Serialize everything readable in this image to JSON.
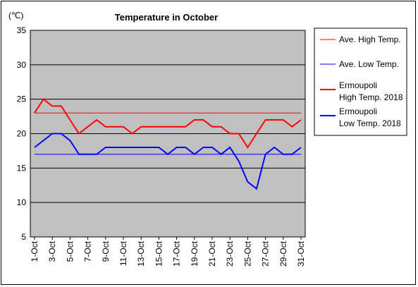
{
  "chart_data": {
    "type": "line",
    "title": "Temperature in October",
    "ylabel": "(℃)",
    "xlabel": "",
    "ylim": [
      5,
      35
    ],
    "yticks": [
      5,
      10,
      15,
      20,
      25,
      30,
      35
    ],
    "grid": true,
    "legend_position": "right",
    "categories": [
      "1-Oct",
      "2-Oct",
      "3-Oct",
      "4-Oct",
      "5-Oct",
      "6-Oct",
      "7-Oct",
      "8-Oct",
      "9-Oct",
      "10-Oct",
      "11-Oct",
      "12-Oct",
      "13-Oct",
      "14-Oct",
      "15-Oct",
      "16-Oct",
      "17-Oct",
      "18-Oct",
      "19-Oct",
      "20-Oct",
      "21-Oct",
      "22-Oct",
      "23-Oct",
      "24-Oct",
      "25-Oct",
      "26-Oct",
      "27-Oct",
      "28-Oct",
      "29-Oct",
      "30-Oct",
      "31-Oct"
    ],
    "x_tick_labels": [
      "1-Oct",
      "3-Oct",
      "5-Oct",
      "7-Oct",
      "9-Oct",
      "11-Oct",
      "13-Oct",
      "15-Oct",
      "17-Oct",
      "19-Oct",
      "21-Oct",
      "23-Oct",
      "25-Oct",
      "27-Oct",
      "29-Oct",
      "31-Oct"
    ],
    "series": [
      {
        "name": "Ave. High Temp.",
        "color": "#ff0000",
        "width": 1,
        "values": [
          23,
          23,
          23,
          23,
          23,
          23,
          23,
          23,
          23,
          23,
          23,
          23,
          23,
          23,
          23,
          23,
          23,
          23,
          23,
          23,
          23,
          23,
          23,
          23,
          23,
          23,
          23,
          23,
          23,
          23,
          23
        ]
      },
      {
        "name": "Ave. Low Temp.",
        "color": "#0000ff",
        "width": 1,
        "values": [
          17,
          17,
          17,
          17,
          17,
          17,
          17,
          17,
          17,
          17,
          17,
          17,
          17,
          17,
          17,
          17,
          17,
          17,
          17,
          17,
          17,
          17,
          17,
          17,
          17,
          17,
          17,
          17,
          17,
          17,
          17
        ]
      },
      {
        "name": "Ermoupoli High Temp. 2018",
        "legend_lines": [
          "Ermoupoli",
          "High Temp. 2018"
        ],
        "color": "#ff0000",
        "width": 2,
        "values": [
          23,
          25,
          24,
          24,
          22,
          20,
          21,
          22,
          21,
          21,
          21,
          20,
          21,
          21,
          21,
          21,
          21,
          21,
          22,
          22,
          21,
          21,
          20,
          20,
          18,
          20,
          22,
          22,
          22,
          21,
          22
        ]
      },
      {
        "name": "Ermoupoli Low Temp. 2018",
        "legend_lines": [
          "Ermoupoli",
          "Low Temp. 2018"
        ],
        "color": "#0000ff",
        "width": 2,
        "values": [
          18,
          19,
          20,
          20,
          19,
          17,
          17,
          17,
          18,
          18,
          18,
          18,
          18,
          18,
          18,
          17,
          18,
          18,
          17,
          18,
          18,
          17,
          18,
          16,
          13,
          12,
          17,
          18,
          17,
          17,
          18
        ]
      }
    ]
  }
}
